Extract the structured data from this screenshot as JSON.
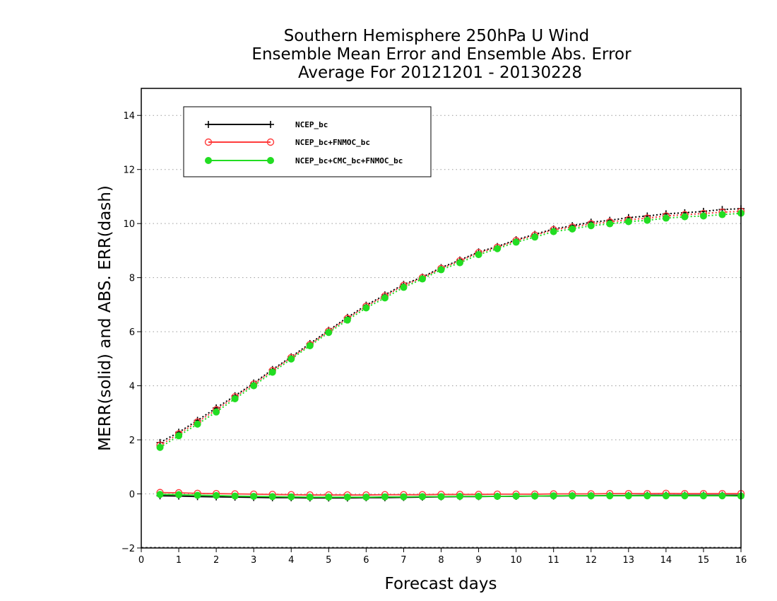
{
  "chart_data": {
    "type": "line",
    "title_lines": [
      "Southern Hemisphere 250hPa U Wind",
      "Ensemble Mean Error and Ensemble Abs. Error",
      "Average For 20121201 - 20130228"
    ],
    "xlabel": "Forecast days",
    "ylabel": "MERR(solid) and ABS. ERR(dash)",
    "xlim": [
      0,
      16
    ],
    "ylim": [
      -2,
      15
    ],
    "xticks": [
      "0",
      "1",
      "2",
      "3",
      "4",
      "5",
      "6",
      "7",
      "8",
      "9",
      "10",
      "11",
      "12",
      "13",
      "14",
      "15",
      "16"
    ],
    "yticks": [
      "−2",
      "0",
      "2",
      "4",
      "6",
      "8",
      "10",
      "12",
      "14"
    ],
    "grid": "horizontal dotted",
    "legend_position": "top-left",
    "x": [
      0.5,
      1,
      1.5,
      2,
      2.5,
      3,
      3.5,
      4,
      4.5,
      5,
      5.5,
      6,
      6.5,
      7,
      7.5,
      8,
      8.5,
      9,
      9.5,
      10,
      10.5,
      11,
      11.5,
      12,
      12.5,
      13,
      13.5,
      14,
      14.5,
      15,
      15.5,
      16
    ],
    "series": [
      {
        "name": "NCEP_bc",
        "color": "#000000",
        "marker": "plus",
        "abs_error": [
          1.9,
          2.28,
          2.72,
          3.18,
          3.63,
          4.1,
          4.6,
          5.07,
          5.56,
          6.05,
          6.53,
          6.98,
          7.36,
          7.75,
          8.02,
          8.37,
          8.65,
          8.95,
          9.15,
          9.4,
          9.6,
          9.8,
          9.92,
          10.05,
          10.12,
          10.22,
          10.28,
          10.36,
          10.4,
          10.45,
          10.52,
          10.55
        ],
        "mean_error": [
          -0.07,
          -0.08,
          -0.1,
          -0.11,
          -0.12,
          -0.13,
          -0.14,
          -0.14,
          -0.15,
          -0.15,
          -0.15,
          -0.14,
          -0.14,
          -0.13,
          -0.12,
          -0.11,
          -0.1,
          -0.1,
          -0.09,
          -0.09,
          -0.08,
          -0.08,
          -0.07,
          -0.07,
          -0.06,
          -0.06,
          -0.05,
          -0.05,
          -0.05,
          -0.05,
          -0.05,
          -0.05
        ]
      },
      {
        "name": "NCEP_bc+FNMOC_bc",
        "color": "#ff3b3b",
        "marker": "open-circle",
        "abs_error": [
          1.8,
          2.22,
          2.66,
          3.11,
          3.59,
          4.06,
          4.56,
          5.04,
          5.52,
          6.02,
          6.49,
          6.94,
          7.32,
          7.71,
          8.0,
          8.34,
          8.62,
          8.92,
          9.12,
          9.37,
          9.57,
          9.77,
          9.87,
          9.99,
          10.06,
          10.14,
          10.2,
          10.28,
          10.33,
          10.37,
          10.42,
          10.45
        ],
        "mean_error": [
          0.05,
          0.04,
          0.02,
          0.01,
          0.0,
          -0.01,
          -0.02,
          -0.03,
          -0.04,
          -0.04,
          -0.04,
          -0.04,
          -0.03,
          -0.03,
          -0.03,
          -0.02,
          -0.02,
          -0.02,
          -0.01,
          -0.01,
          -0.01,
          0.0,
          0.0,
          0.0,
          0.01,
          0.01,
          0.01,
          0.02,
          0.01,
          0.01,
          0.01,
          0.01
        ]
      },
      {
        "name": "NCEP_bc+CMC_bc+FNMOC_bc",
        "color": "#22dd22",
        "marker": "filled-circle",
        "abs_error": [
          1.72,
          2.15,
          2.58,
          3.03,
          3.52,
          4.0,
          4.5,
          4.99,
          5.48,
          5.97,
          6.43,
          6.88,
          7.25,
          7.64,
          7.95,
          8.29,
          8.55,
          8.85,
          9.07,
          9.31,
          9.5,
          9.7,
          9.8,
          9.92,
          9.99,
          10.07,
          10.12,
          10.2,
          10.25,
          10.28,
          10.33,
          10.38
        ],
        "mean_error": [
          -0.02,
          -0.03,
          -0.05,
          -0.06,
          -0.08,
          -0.09,
          -0.1,
          -0.11,
          -0.12,
          -0.12,
          -0.12,
          -0.12,
          -0.11,
          -0.11,
          -0.1,
          -0.1,
          -0.09,
          -0.09,
          -0.09,
          -0.08,
          -0.08,
          -0.07,
          -0.07,
          -0.07,
          -0.07,
          -0.07,
          -0.07,
          -0.07,
          -0.07,
          -0.07,
          -0.07,
          -0.08
        ]
      }
    ]
  }
}
